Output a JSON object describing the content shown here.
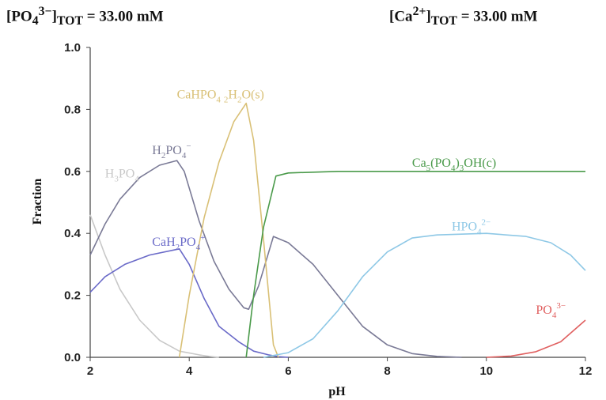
{
  "header": {
    "left": {
      "pre": "[PO",
      "sub": "4",
      "sup": "3−",
      "post": "]",
      "sub2": "TOT",
      "tail": " = 33.00 mM"
    },
    "right": {
      "pre": "[Ca",
      "sup": "2+",
      "post": "]",
      "sub2": "TOT",
      "tail": " = 33.00 mM"
    }
  },
  "chart_data": {
    "type": "line",
    "xlabel": "pH",
    "ylabel": "Fraction",
    "xlim": [
      2,
      12
    ],
    "ylim": [
      0,
      1
    ],
    "xticks": [
      "2",
      "4",
      "6",
      "8",
      "10",
      "12"
    ],
    "yticks": [
      "0.0",
      "0.2",
      "0.4",
      "0.6",
      "0.8",
      "1.0"
    ],
    "grid": false,
    "series": [
      {
        "key": "h3po4",
        "name": "H3PO4",
        "color": "#c8c8c8",
        "label_parts": [
          [
            "H",
            ""
          ],
          [
            "3",
            "sub"
          ],
          [
            "PO",
            ""
          ],
          [
            "4",
            "sub"
          ]
        ],
        "points": [
          [
            2,
            0.46
          ],
          [
            2.3,
            0.33
          ],
          [
            2.6,
            0.22
          ],
          [
            3.0,
            0.12
          ],
          [
            3.4,
            0.055
          ],
          [
            3.8,
            0.02
          ],
          [
            4.2,
            0.008
          ],
          [
            4.4,
            0.003
          ],
          [
            4.6,
            0
          ]
        ]
      },
      {
        "key": "h2po4",
        "name": "H2PO4-",
        "color": "#7a7a96",
        "label_parts": [
          [
            "H",
            ""
          ],
          [
            "2",
            "sub"
          ],
          [
            "PO",
            ""
          ],
          [
            "4",
            "sub"
          ],
          [
            "−",
            "sup"
          ]
        ],
        "points": [
          [
            2,
            0.33
          ],
          [
            2.3,
            0.43
          ],
          [
            2.6,
            0.51
          ],
          [
            3.0,
            0.58
          ],
          [
            3.4,
            0.62
          ],
          [
            3.75,
            0.635
          ],
          [
            3.9,
            0.6
          ],
          [
            4.2,
            0.44
          ],
          [
            4.5,
            0.31
          ],
          [
            4.8,
            0.22
          ],
          [
            5.1,
            0.16
          ],
          [
            5.2,
            0.155
          ],
          [
            5.4,
            0.23
          ],
          [
            5.7,
            0.39
          ],
          [
            6.0,
            0.37
          ],
          [
            6.5,
            0.3
          ],
          [
            7.0,
            0.2
          ],
          [
            7.5,
            0.1
          ],
          [
            8.0,
            0.04
          ],
          [
            8.5,
            0.012
          ],
          [
            9.0,
            0.003
          ],
          [
            9.5,
            0
          ]
        ]
      },
      {
        "key": "cah2po4",
        "name": "CaH2PO4+",
        "color": "#6a6ac8",
        "label_parts": [
          [
            "CaH",
            ""
          ],
          [
            "2",
            "sub"
          ],
          [
            "PO",
            ""
          ],
          [
            "4",
            "sub"
          ],
          [
            "+",
            "sup"
          ]
        ],
        "points": [
          [
            2,
            0.21
          ],
          [
            2.3,
            0.26
          ],
          [
            2.7,
            0.3
          ],
          [
            3.2,
            0.33
          ],
          [
            3.8,
            0.35
          ],
          [
            4.0,
            0.3
          ],
          [
            4.3,
            0.19
          ],
          [
            4.6,
            0.1
          ],
          [
            5.0,
            0.05
          ],
          [
            5.3,
            0.02
          ],
          [
            5.6,
            0.008
          ],
          [
            5.8,
            0.002
          ],
          [
            6.0,
            0
          ]
        ]
      },
      {
        "key": "cahpo4",
        "name": "CaHPO4·2H2O(s)",
        "color": "#d9c076",
        "label_parts": [
          [
            "CaHPO",
            ""
          ],
          [
            "4",
            "sub"
          ],
          [
            " ",
            ""
          ],
          [
            "2",
            "sub"
          ],
          [
            "H",
            ""
          ],
          [
            "2",
            "sub"
          ],
          [
            "O(s)",
            ""
          ]
        ],
        "points": [
          [
            3.8,
            0
          ],
          [
            4.0,
            0.2
          ],
          [
            4.3,
            0.45
          ],
          [
            4.6,
            0.63
          ],
          [
            4.9,
            0.76
          ],
          [
            5.15,
            0.82
          ],
          [
            5.3,
            0.7
          ],
          [
            5.5,
            0.38
          ],
          [
            5.7,
            0.04
          ],
          [
            5.8,
            0
          ]
        ]
      },
      {
        "key": "hap",
        "name": "Ca5(PO4)3OH(c)",
        "color": "#4a9a4a",
        "label_parts": [
          [
            "Ca",
            ""
          ],
          [
            "5",
            "sub"
          ],
          [
            "(PO",
            ""
          ],
          [
            "4",
            "sub"
          ],
          [
            ")",
            ""
          ],
          [
            "3",
            "sub"
          ],
          [
            "OH(c)",
            ""
          ]
        ],
        "points": [
          [
            5.15,
            0
          ],
          [
            5.3,
            0.2
          ],
          [
            5.5,
            0.42
          ],
          [
            5.75,
            0.585
          ],
          [
            6.0,
            0.595
          ],
          [
            7.0,
            0.6
          ],
          [
            12.0,
            0.6
          ]
        ]
      },
      {
        "key": "hpo4",
        "name": "HPO4 2-",
        "color": "#8ec8e6",
        "label_parts": [
          [
            "HPO",
            ""
          ],
          [
            "4",
            "sub"
          ],
          [
            "2−",
            "sup"
          ]
        ],
        "points": [
          [
            5.5,
            0
          ],
          [
            6.0,
            0.015
          ],
          [
            6.5,
            0.06
          ],
          [
            7.0,
            0.15
          ],
          [
            7.5,
            0.26
          ],
          [
            8.0,
            0.34
          ],
          [
            8.5,
            0.385
          ],
          [
            9.0,
            0.395
          ],
          [
            10.0,
            0.4
          ],
          [
            10.8,
            0.39
          ],
          [
            11.3,
            0.37
          ],
          [
            11.7,
            0.33
          ],
          [
            12.0,
            0.28
          ]
        ]
      },
      {
        "key": "po4",
        "name": "PO4 3-",
        "color": "#e06060",
        "label_parts": [
          [
            "PO",
            ""
          ],
          [
            "4",
            "sub"
          ],
          [
            "3−",
            "sup"
          ]
        ],
        "points": [
          [
            10.0,
            0
          ],
          [
            10.5,
            0.004
          ],
          [
            11.0,
            0.018
          ],
          [
            11.5,
            0.05
          ],
          [
            12.0,
            0.12
          ]
        ]
      }
    ]
  }
}
